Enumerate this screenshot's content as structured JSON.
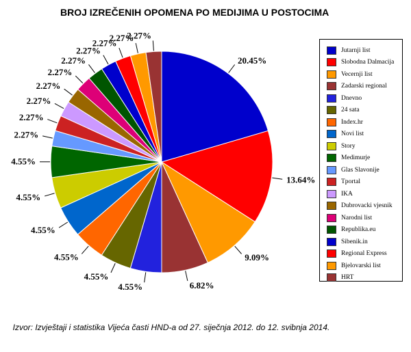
{
  "chart_data": {
    "type": "pie",
    "title": "BROJ IZREČENIH OPOMENA PO MEDIJIMA U POSTOCIMA",
    "categories": [
      "Jutarnji list",
      "Slobodna Dalmacija",
      "Vecernji list",
      "Zadarski regional",
      "Dnevno",
      "24 sata",
      "Index.hr",
      "Novi list",
      "Story",
      "Medimurje",
      "Glas Slavonije",
      "Tportal",
      "IKA",
      "Dubrovacki vjesnik",
      "Narodni list",
      "Republika.eu",
      "Sibenik.in",
      "Regional Express",
      "Bjelovarski list",
      "HRT"
    ],
    "values": [
      20.45,
      13.64,
      9.09,
      6.82,
      4.55,
      4.55,
      4.55,
      4.55,
      4.55,
      4.55,
      2.27,
      2.27,
      2.27,
      2.27,
      2.27,
      2.27,
      2.27,
      2.27,
      2.27,
      2.27
    ],
    "value_labels": [
      "20.45%",
      "13.64%",
      "9.09%",
      "6.82%",
      "4.55%",
      "4.55%",
      "4.55%",
      "4.55%",
      "4.55%",
      "4.55%",
      "2.27%",
      "2.27%",
      "2.27%",
      "2.27%",
      "2.27%",
      "2.27%",
      "2.27%",
      "2.27%",
      "2.27%",
      "2.27%"
    ],
    "colors": [
      "#0000cc",
      "#ff0000",
      "#ff9900",
      "#993333",
      "#2222dd",
      "#666600",
      "#ff6600",
      "#0066cc",
      "#cccc00",
      "#006600",
      "#6699ff",
      "#cc2222",
      "#cc99ff",
      "#996600",
      "#dd0077",
      "#005500",
      "#0000cc",
      "#ff0000",
      "#ff9900",
      "#993333"
    ],
    "legend": "right",
    "source": "Izvor: Izvještaji i statistika Vijeća časti HND-a od 27. siječnja 2012. do 12. svibnja 2014."
  }
}
